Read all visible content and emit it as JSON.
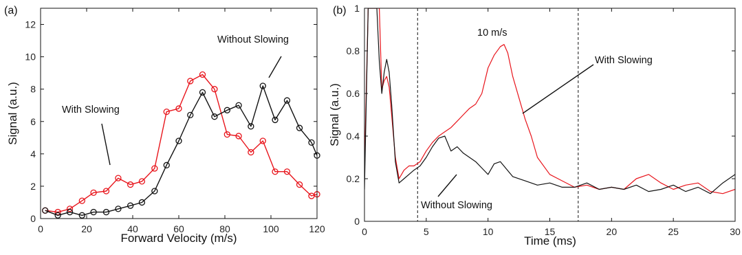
{
  "chart_data": [
    {
      "panel_label": "(a)",
      "type": "line",
      "xlabel": "Forward Velocity (m/s)",
      "ylabel": "Signal (a.u.)",
      "xlim": [
        0,
        120
      ],
      "ylim": [
        0,
        13
      ],
      "xticks": [
        "0",
        "20",
        "40",
        "60",
        "80",
        "100",
        "120"
      ],
      "yticks": [
        "0",
        "2",
        "4",
        "6",
        "8",
        "10",
        "12"
      ],
      "grid": false,
      "markers": "open circles",
      "series": [
        {
          "name": "With Slowing",
          "color": "#e8141b",
          "x": [
            2,
            7.5,
            12.7,
            18,
            23,
            28.5,
            33.7,
            39,
            44,
            49.5,
            54.7,
            60,
            65,
            70.3,
            75.5,
            81,
            86,
            91.3,
            96.5,
            101.8,
            107,
            112.4,
            117.6,
            120
          ],
          "y": [
            0.5,
            0.4,
            0.6,
            1.1,
            1.6,
            1.7,
            2.5,
            2.1,
            2.3,
            3.1,
            6.6,
            6.8,
            8.5,
            8.9,
            8.0,
            5.2,
            5.1,
            4.1,
            4.8,
            2.9,
            2.9,
            2.1,
            1.4,
            1.5
          ]
        },
        {
          "name": "Without Slowing",
          "color": "#111111",
          "x": [
            2,
            7.5,
            12.7,
            18,
            23,
            28.5,
            33.7,
            39,
            44,
            49.5,
            54.7,
            60,
            65,
            70.3,
            75.5,
            81,
            86,
            91.3,
            96.5,
            101.8,
            107,
            112.4,
            117.6,
            120
          ],
          "y": [
            0.5,
            0.2,
            0.4,
            0.2,
            0.4,
            0.4,
            0.6,
            0.8,
            1.0,
            1.7,
            3.3,
            4.8,
            6.4,
            7.8,
            6.3,
            6.7,
            7.0,
            5.7,
            8.2,
            6.1,
            7.3,
            5.6,
            4.7,
            3.9
          ]
        }
      ],
      "annotations": [
        "With Slowing",
        "Without Slowing"
      ]
    },
    {
      "panel_label": "(b)",
      "type": "line",
      "xlabel": "Time (ms)",
      "ylabel": "Signal (a.u.)",
      "xlim": [
        0,
        30
      ],
      "ylim": [
        0,
        1
      ],
      "xticks": [
        "0",
        "5",
        "10",
        "15",
        "20",
        "25",
        "30"
      ],
      "yticks": [
        "0",
        "0.2",
        "0.4",
        "0.6",
        "0.8",
        "1"
      ],
      "grid": false,
      "vlines_dashed": [
        4.3,
        17.3
      ],
      "annotation_between_vlines": "10 m/s",
      "series": [
        {
          "name": "With Slowing",
          "color": "#e8141b",
          "x": [
            0,
            0.3,
            0.5,
            0.8,
            1.0,
            1.2,
            1.4,
            1.6,
            1.8,
            2.0,
            2.2,
            2.5,
            2.8,
            3.2,
            3.6,
            4.0,
            4.5,
            5.0,
            5.5,
            6.0,
            6.5,
            7.0,
            7.5,
            8.0,
            8.5,
            9.0,
            9.5,
            10.0,
            10.5,
            11.0,
            11.3,
            11.6,
            12.0,
            12.5,
            13.0,
            13.5,
            14.0,
            15.0,
            16.0,
            17.0,
            18.0,
            19.0,
            20.0,
            21.0,
            22.0,
            23.0,
            24.0,
            25.0,
            26.0,
            27.0,
            28.0,
            29.0,
            30.0
          ],
          "y": [
            0.25,
            1.0,
            1.0,
            1.0,
            1.0,
            1.0,
            0.62,
            0.66,
            0.68,
            0.63,
            0.5,
            0.3,
            0.2,
            0.24,
            0.26,
            0.26,
            0.28,
            0.33,
            0.37,
            0.4,
            0.42,
            0.44,
            0.47,
            0.5,
            0.53,
            0.55,
            0.6,
            0.72,
            0.78,
            0.82,
            0.83,
            0.79,
            0.68,
            0.58,
            0.48,
            0.4,
            0.3,
            0.22,
            0.19,
            0.16,
            0.17,
            0.15,
            0.16,
            0.15,
            0.2,
            0.22,
            0.18,
            0.15,
            0.17,
            0.18,
            0.14,
            0.13,
            0.15
          ]
        },
        {
          "name": "Without Slowing",
          "color": "#111111",
          "x": [
            0,
            0.3,
            0.5,
            0.8,
            1.0,
            1.2,
            1.4,
            1.6,
            1.8,
            2.0,
            2.2,
            2.5,
            2.8,
            3.2,
            3.6,
            4.0,
            4.5,
            5.0,
            5.5,
            6.0,
            6.5,
            7.0,
            7.5,
            8.0,
            8.5,
            9.0,
            9.5,
            10.0,
            10.5,
            11.0,
            12.0,
            13.0,
            14.0,
            15.0,
            16.0,
            17.0,
            18.0,
            19.0,
            20.0,
            21.0,
            22.0,
            23.0,
            24.0,
            25.0,
            26.0,
            27.0,
            28.0,
            29.0,
            30.0
          ],
          "y": [
            0.15,
            1.0,
            1.0,
            1.0,
            1.0,
            0.75,
            0.6,
            0.7,
            0.76,
            0.7,
            0.55,
            0.28,
            0.18,
            0.2,
            0.22,
            0.24,
            0.26,
            0.3,
            0.35,
            0.39,
            0.4,
            0.33,
            0.35,
            0.32,
            0.3,
            0.28,
            0.25,
            0.22,
            0.27,
            0.28,
            0.21,
            0.19,
            0.17,
            0.18,
            0.16,
            0.16,
            0.18,
            0.15,
            0.16,
            0.15,
            0.17,
            0.14,
            0.15,
            0.17,
            0.14,
            0.16,
            0.13,
            0.18,
            0.22
          ]
        }
      ],
      "annotations": [
        "With Slowing",
        "Without Slowing"
      ]
    }
  ]
}
